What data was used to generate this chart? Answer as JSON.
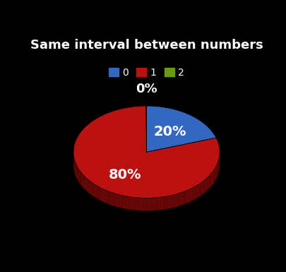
{
  "title": "Same interval between numbers",
  "background_color": "#000000",
  "slices": [
    0.2,
    0.8,
    0.001
  ],
  "labels": [
    "20%",
    "80%",
    "0%"
  ],
  "colors": [
    "#3468c0",
    "#bb1111",
    "#6a9a10"
  ],
  "shadow_colors": [
    "#1a3070",
    "#6a0808",
    "#2a5008"
  ],
  "legend_labels": [
    "0",
    "1",
    "2"
  ],
  "legend_colors": [
    "#3468c0",
    "#bb1111",
    "#6a9a10"
  ],
  "title_fontsize": 13,
  "label_fontsize": 13,
  "legend_fontsize": 10,
  "startangle": 90
}
